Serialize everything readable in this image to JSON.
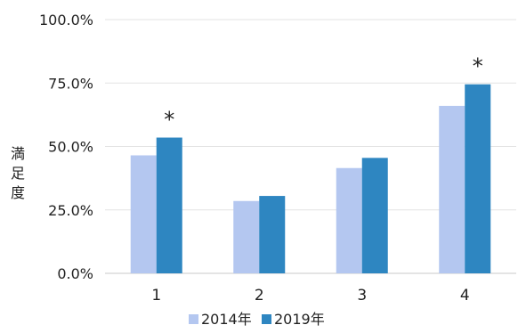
{
  "chart_data": {
    "type": "bar",
    "categories": [
      "1",
      "2",
      "3",
      "4"
    ],
    "series": [
      {
        "name": "2014年",
        "values": [
          46.5,
          28.5,
          41.5,
          66.0
        ],
        "color": "#b4c7f0"
      },
      {
        "name": "2019年",
        "values": [
          53.5,
          30.5,
          45.5,
          74.5
        ],
        "color": "#2e86c1"
      }
    ],
    "ylabel": "満足度",
    "ylim": [
      0,
      100
    ],
    "yticks": [
      "0.0%",
      "25.0%",
      "50.0%",
      "75.0%",
      "100.0%"
    ],
    "ytick_values": [
      0,
      25,
      50,
      75,
      100
    ],
    "annotations": [
      {
        "category": "1",
        "text": "*"
      },
      {
        "category": "4",
        "text": "*"
      }
    ],
    "grid": true,
    "legend_position": "bottom"
  }
}
